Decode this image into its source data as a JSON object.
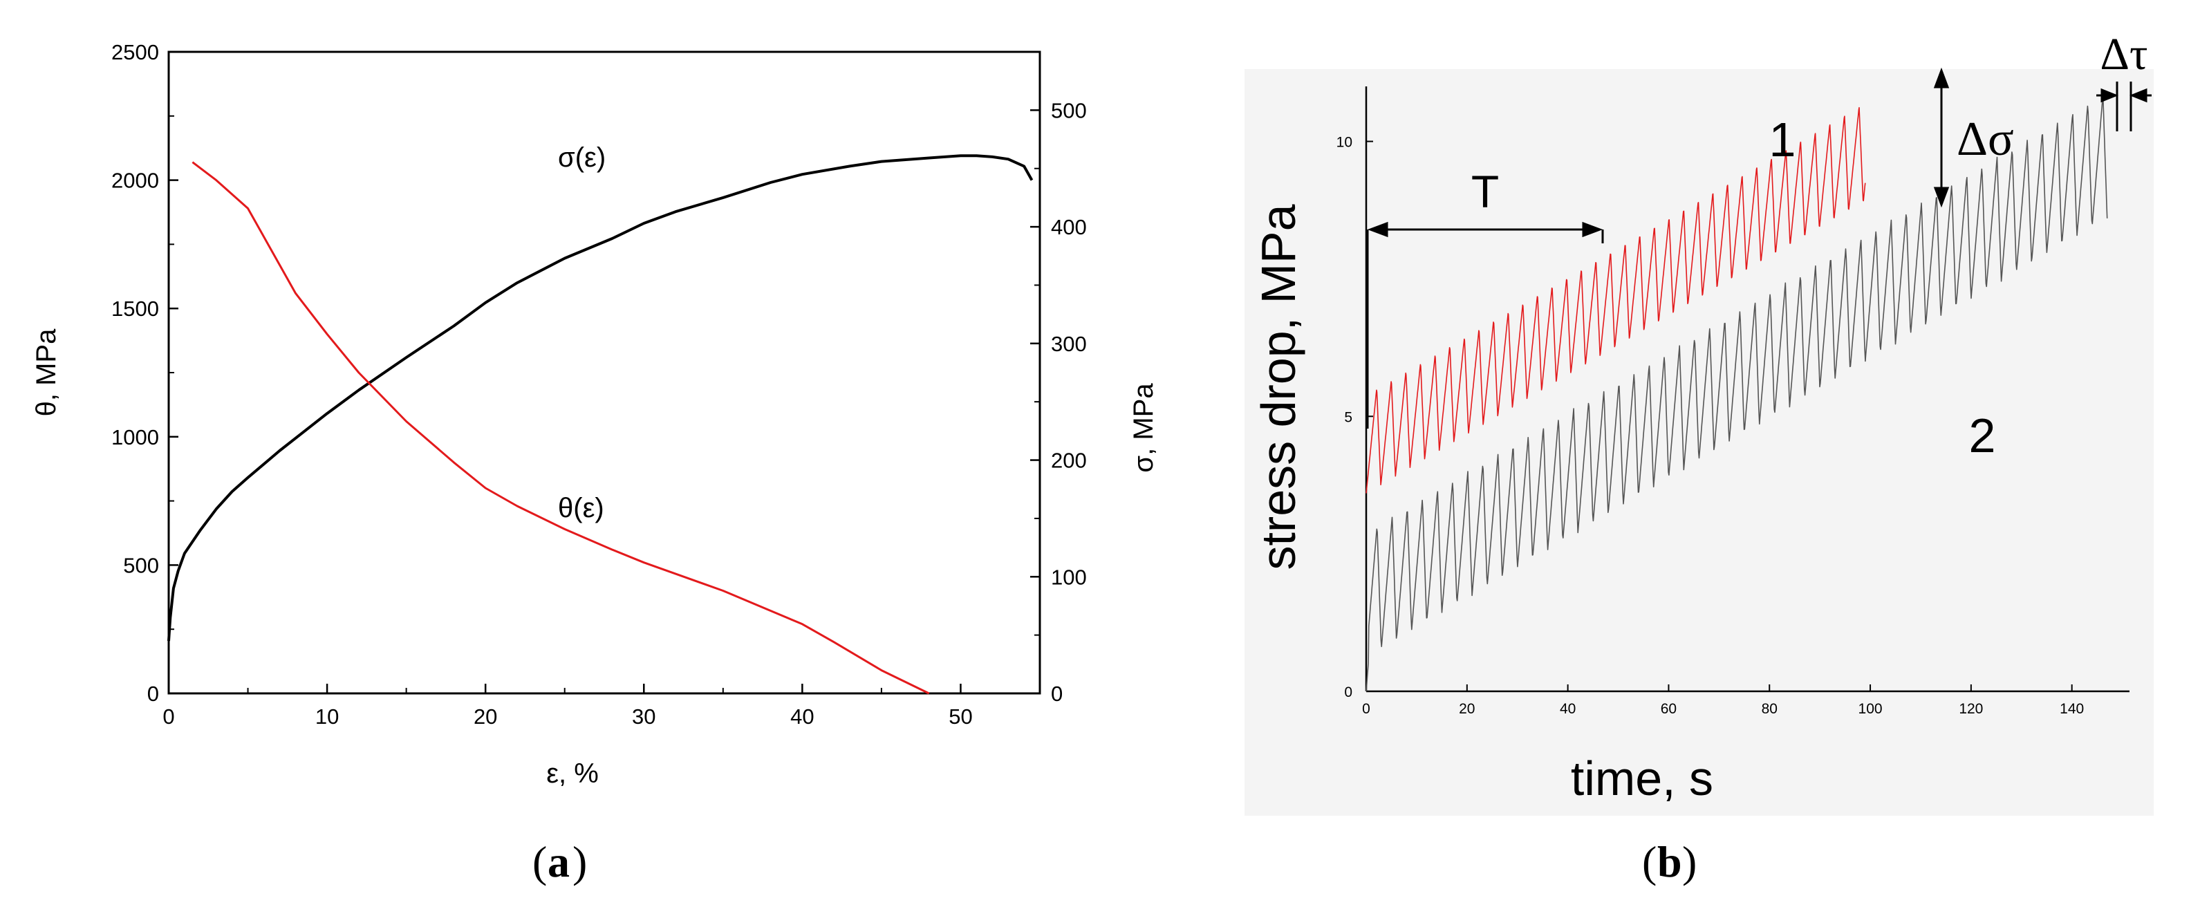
{
  "chart_data": [
    {
      "id": "a",
      "type": "line",
      "caption_letter": "a",
      "caption_open": "(",
      "caption_close": ")",
      "xlabel": "ε, %",
      "ylabel_left": "θ, MPa",
      "ylabel_right": "σ, MPa",
      "xlim": [
        0,
        55
      ],
      "ylim_left": [
        0,
        2500
      ],
      "ylim_right": [
        0,
        550
      ],
      "x_ticks": [
        "0",
        "10",
        "20",
        "30",
        "40",
        "50"
      ],
      "y_left_ticks": [
        "0",
        "500",
        "1000",
        "1500",
        "2000",
        "2500"
      ],
      "y_right_ticks": [
        "0",
        "100",
        "200",
        "300",
        "400",
        "500"
      ],
      "series": [
        {
          "name": "σ(ε)",
          "label": "σ(ε)",
          "axis": "right",
          "color": "#000000",
          "x": [
            0,
            0.1,
            0.3,
            0.6,
            1,
            2,
            3,
            4,
            5,
            7,
            10,
            12,
            15,
            18,
            20,
            22,
            25,
            28,
            30,
            32,
            35,
            38,
            40,
            43,
            45,
            48,
            50,
            51,
            52,
            53,
            54,
            54.5
          ],
          "y": [
            45,
            65,
            90,
            105,
            120,
            140,
            158,
            173,
            185,
            208,
            240,
            260,
            288,
            315,
            335,
            352,
            373,
            390,
            403,
            413,
            425,
            438,
            445,
            452,
            456,
            459,
            461,
            461,
            460,
            458,
            452,
            440
          ]
        },
        {
          "name": "θ(ε)",
          "label": "θ(ε)",
          "axis": "left",
          "color": "#e31a1c",
          "x": [
            1.5,
            3,
            5,
            6,
            8,
            10,
            12,
            15,
            18,
            20,
            22,
            25,
            28,
            30,
            35,
            40,
            42,
            45,
            48
          ],
          "y": [
            2070,
            2000,
            1890,
            1780,
            1560,
            1400,
            1250,
            1060,
            900,
            800,
            730,
            640,
            560,
            510,
            400,
            270,
            200,
            90,
            0
          ]
        }
      ]
    },
    {
      "id": "b",
      "type": "line",
      "caption_letter": "b",
      "caption_open": "(",
      "caption_close": ")",
      "xlabel": "time, s",
      "ylabel": "stress drop, MPa",
      "xlim": [
        0,
        148
      ],
      "ylim": [
        0,
        11
      ],
      "x_ticks": [
        "0",
        "20",
        "40",
        "60",
        "80",
        "100",
        "120",
        "140"
      ],
      "y_ticks": [
        "0",
        "5",
        "10"
      ],
      "annotations": {
        "period_label": "T",
        "amplitude_label": "Δσ",
        "interval_label": "Δτ",
        "curve1_label": "1",
        "curve2_label": "2"
      },
      "series": [
        {
          "name": "1",
          "color": "#e31a1c",
          "t_start": 0,
          "t_end": 99,
          "baseline_start": 3.6,
          "baseline_end": 8.9,
          "amplitude": 1.8,
          "period": 2.9
        },
        {
          "name": "2",
          "color": "#555555",
          "t_start": 0,
          "t_end": 147,
          "baseline_start": 0.6,
          "baseline_end": 8.6,
          "amplitude": 2.3,
          "period": 3.0
        }
      ]
    }
  ]
}
